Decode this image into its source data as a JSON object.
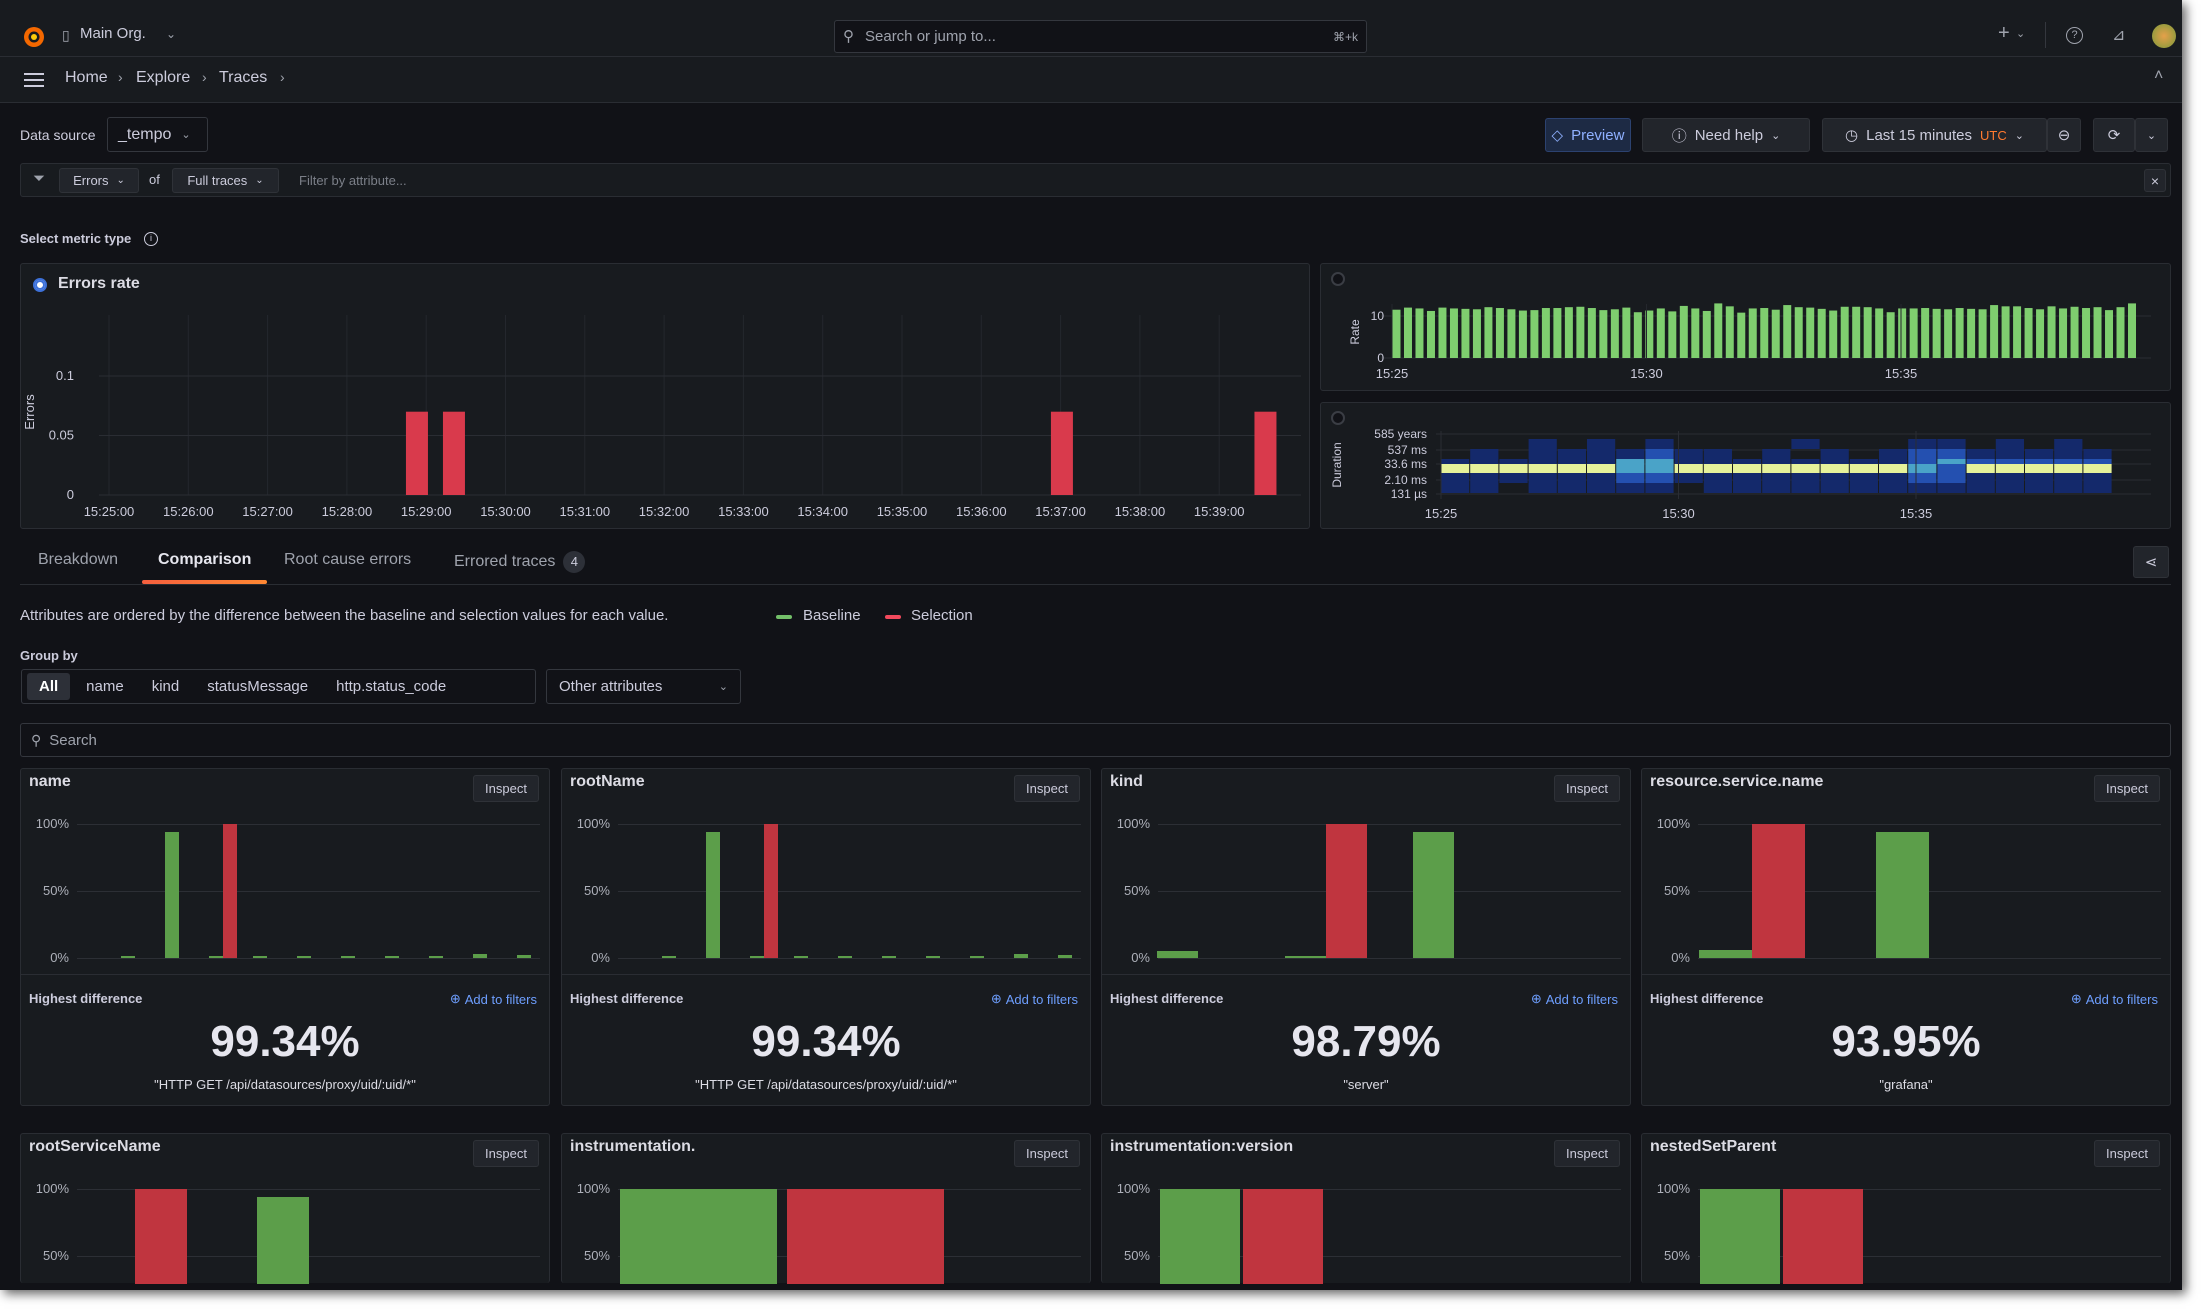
{
  "topbar": {
    "org": "Main Org.",
    "search_placeholder": "Search or jump to...",
    "search_shortcut": "⌘+k",
    "add_label": "+"
  },
  "breadcrumb": [
    "Home",
    "Explore",
    "Traces"
  ],
  "toolbar": {
    "datasource_label": "Data source",
    "datasource_value": "_tempo",
    "preview": "Preview",
    "need_help": "Need help",
    "time_range": "Last 15 minutes",
    "timezone": "UTC"
  },
  "filter": {
    "metric": "Errors",
    "of": "of",
    "scope": "Full traces",
    "placeholder": "Filter by attribute...",
    "clear": "×"
  },
  "metric_type_label": "Select metric type",
  "errors_panel_title": "Errors rate",
  "tabs": [
    {
      "label": "Breakdown"
    },
    {
      "label": "Comparison",
      "active": true
    },
    {
      "label": "Root cause errors"
    },
    {
      "label": "Errored traces",
      "badge": "4"
    }
  ],
  "comparison": {
    "description": "Attributes are ordered by the difference between the baseline and selection values for each value.",
    "legend": {
      "baseline": "Baseline",
      "selection": "Selection"
    },
    "group_by_label": "Group by",
    "group_by_options": [
      "All",
      "name",
      "kind",
      "statusMessage",
      "http.status_code"
    ],
    "group_by_selected": "All",
    "other_attributes": "Other attributes",
    "search_placeholder": "Search",
    "inspect_label": "Inspect",
    "highest_label": "Highest difference",
    "add_to_filters": "Add to filters",
    "y_ticks": [
      "100%",
      "50%",
      "0%"
    ],
    "cards": [
      {
        "title": "name",
        "value": "99.34%",
        "attribute_value": "\"HTTP GET /api/datasources/proxy/uid/:uid/*\"",
        "bars": [
          {
            "baseline": 0.5,
            "selection": 0
          },
          {
            "baseline": 94,
            "selection": 0
          },
          {
            "baseline": 0.5,
            "selection": 100
          },
          {
            "baseline": 0.5,
            "selection": 0
          },
          {
            "baseline": 0.5,
            "selection": 0
          },
          {
            "baseline": 0.5,
            "selection": 0
          },
          {
            "baseline": 0.5,
            "selection": 0
          },
          {
            "baseline": 0.5,
            "selection": 0
          },
          {
            "baseline": 3,
            "selection": 0
          },
          {
            "baseline": 2,
            "selection": 0
          }
        ]
      },
      {
        "title": "rootName",
        "value": "99.34%",
        "attribute_value": "\"HTTP GET /api/datasources/proxy/uid/:uid/*\"",
        "bars": [
          {
            "baseline": 0.5,
            "selection": 0
          },
          {
            "baseline": 94,
            "selection": 0
          },
          {
            "baseline": 0.5,
            "selection": 100
          },
          {
            "baseline": 0.5,
            "selection": 0
          },
          {
            "baseline": 0.5,
            "selection": 0
          },
          {
            "baseline": 0.5,
            "selection": 0
          },
          {
            "baseline": 0.5,
            "selection": 0
          },
          {
            "baseline": 0.5,
            "selection": 0
          },
          {
            "baseline": 3,
            "selection": 0
          },
          {
            "baseline": 2,
            "selection": 0
          }
        ]
      },
      {
        "title": "kind",
        "value": "98.79%",
        "attribute_value": "\"server\"",
        "bars": [
          {
            "baseline": 5,
            "selection": 0
          },
          {
            "baseline": 1.5,
            "selection": 100
          },
          {
            "baseline": 94,
            "selection": 0
          }
        ]
      },
      {
        "title": "resource.service.name",
        "value": "93.95%",
        "attribute_value": "\"grafana\"",
        "bars": [
          {
            "baseline": 6,
            "selection": 100
          },
          {
            "baseline": 94,
            "selection": 0
          }
        ]
      },
      {
        "title": "rootServiceName",
        "bars": [
          {
            "baseline": 0,
            "selection": 100
          },
          {
            "baseline": 94,
            "selection": 0
          }
        ]
      },
      {
        "title": "instrumentation.",
        "bars": [
          {
            "baseline": 100,
            "selection": 100
          }
        ]
      },
      {
        "title": "instrumentation:version",
        "bars": [
          {
            "baseline": 100,
            "selection": 100
          }
        ]
      },
      {
        "title": "nestedSetParent",
        "bars": [
          {
            "baseline": 100,
            "selection": 100
          }
        ]
      }
    ]
  },
  "colors": {
    "baseline": "#5c9e4a",
    "selection": "#c0353f",
    "errors": "#d93a4c",
    "rate": "#7fce6f",
    "accent": "#ff7a2f",
    "link": "#6e9fff",
    "primary": "#3d71d9"
  },
  "chart_data": [
    {
      "type": "bar",
      "ylabel": "Errors",
      "x_ticks": [
        "15:25:00",
        "15:26:00",
        "15:27:00",
        "15:28:00",
        "15:29:00",
        "15:30:00",
        "15:31:00",
        "15:32:00",
        "15:33:00",
        "15:34:00",
        "15:35:00",
        "15:36:00",
        "15:37:00",
        "15:38:00",
        "15:39:00"
      ],
      "y_ticks": [
        0,
        0.05,
        0.1
      ],
      "ylim": [
        0,
        0.14
      ],
      "grid": true,
      "x": [
        "15:28:53",
        "15:29:21",
        "15:37:01",
        "15:39:35"
      ],
      "values": [
        0.07,
        0.07,
        0.07,
        0.07
      ]
    },
    {
      "type": "bar",
      "ylabel": "Rate",
      "x_ticks": [
        "15:25",
        "15:30",
        "15:35"
      ],
      "y_ticks": [
        0,
        10
      ],
      "ylim": [
        0,
        14
      ],
      "values": [
        11.5,
        12,
        11.8,
        11.2,
        12,
        11.8,
        11.7,
        11.6,
        12.1,
        11.9,
        11.6,
        11.3,
        11.4,
        11.9,
        11.9,
        12.1,
        12.2,
        11.9,
        11.4,
        11.6,
        12,
        10.9,
        11.3,
        11.8,
        11.1,
        12.4,
        11.8,
        11.2,
        13,
        12.3,
        10.8,
        11.8,
        11.9,
        11.5,
        12.6,
        12.1,
        12,
        11.7,
        11.3,
        12.2,
        12.2,
        12.1,
        11.8,
        10.9,
        11.8,
        11.8,
        11.9,
        11.7,
        11.6,
        11.9,
        11.7,
        11.6,
        12.6,
        12.3,
        12.3,
        11.9,
        11.6,
        12.3,
        11.8,
        12.2,
        11.9,
        12.1,
        11.4,
        12.1,
        13
      ]
    },
    {
      "type": "heatmap",
      "ylabel": "Duration",
      "x_ticks": [
        "15:25",
        "15:30",
        "15:35"
      ],
      "y_ticks": [
        "585 years",
        "537 ms",
        "33.6 ms",
        "2.10 ms",
        "131 µs"
      ],
      "levels": [
        [
          0,
          0,
          0,
          1,
          0,
          1,
          0,
          1,
          0,
          0,
          0,
          0,
          1,
          0,
          0,
          0,
          1,
          1,
          0,
          1,
          0,
          1,
          0
        ],
        [
          0,
          1,
          0,
          1,
          1,
          1,
          1,
          2,
          1,
          1,
          0,
          1,
          0,
          1,
          0,
          1,
          2,
          2,
          1,
          1,
          1,
          1,
          1
        ],
        [
          1,
          1,
          1,
          1,
          1,
          1,
          3,
          3,
          1,
          1,
          1,
          1,
          1,
          1,
          1,
          1,
          2,
          3,
          2,
          2,
          2,
          2,
          2
        ],
        [
          4,
          4,
          4,
          4,
          4,
          4,
          3,
          3,
          4,
          4,
          4,
          4,
          4,
          4,
          4,
          4,
          3,
          2,
          4,
          4,
          4,
          4,
          4
        ],
        [
          1,
          1,
          1,
          1,
          1,
          1,
          2,
          2,
          1,
          1,
          1,
          1,
          1,
          1,
          1,
          1,
          2,
          2,
          1,
          1,
          1,
          1,
          1
        ],
        [
          1,
          1,
          0,
          1,
          1,
          1,
          1,
          1,
          0,
          1,
          1,
          1,
          1,
          1,
          1,
          1,
          1,
          1,
          1,
          1,
          1,
          1,
          1
        ]
      ]
    }
  ]
}
